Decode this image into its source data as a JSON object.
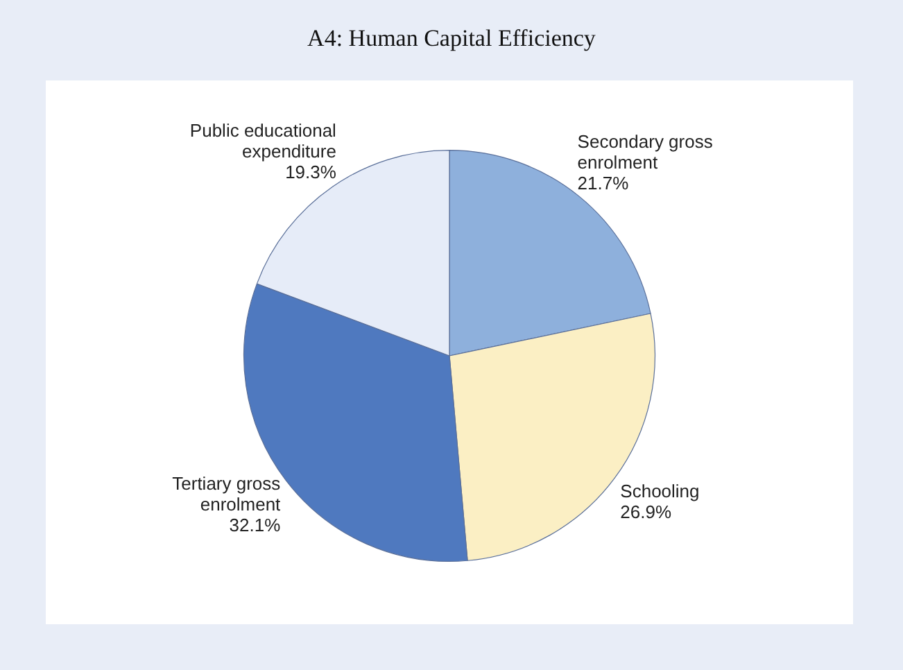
{
  "chart_data": {
    "type": "pie",
    "title": "A4: Human Capital Efficiency",
    "categories": [
      "Secondary gross enrolment",
      "Schooling",
      "Tertiary gross enrolment",
      "Public educational expenditure"
    ],
    "values": [
      21.7,
      26.9,
      32.1,
      19.3
    ],
    "colors": [
      "#8eb0dc",
      "#fbefc4",
      "#4f79bf",
      "#e6ecf8"
    ],
    "value_labels": [
      "21.7%",
      "26.9%",
      "32.1%",
      "19.3%"
    ],
    "legend": false
  }
}
